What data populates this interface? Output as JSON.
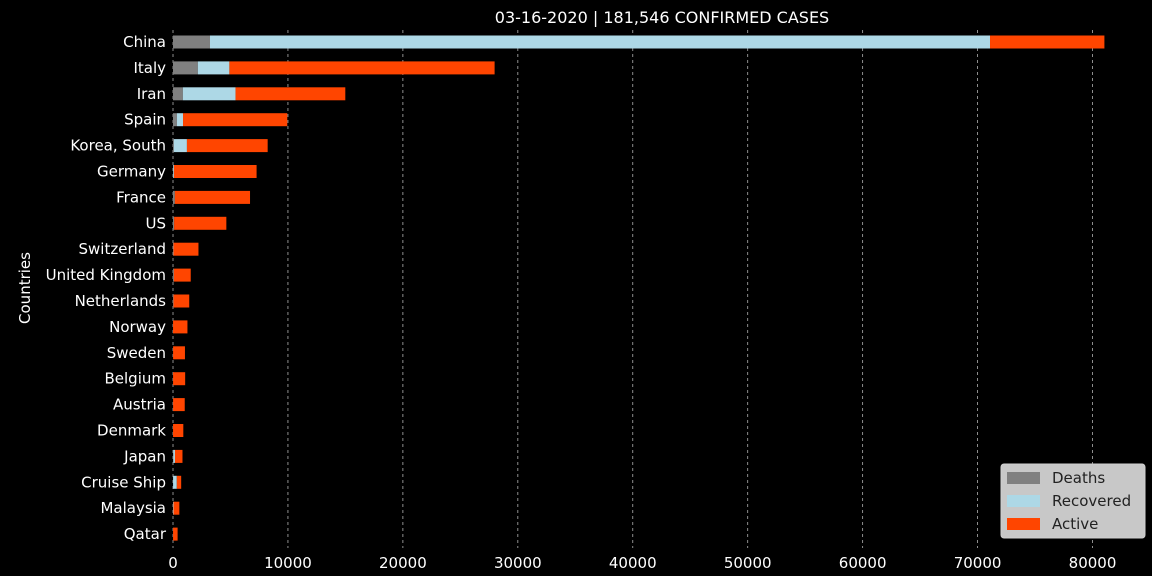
{
  "chart_data": {
    "type": "bar",
    "orientation": "horizontal",
    "stacked": true,
    "title": "03-16-2020 | 181,546 CONFIRMED CASES",
    "ylabel": "Countries",
    "xlabel": "",
    "xlim": [
      0,
      85000
    ],
    "x_ticks": [
      0,
      10000,
      20000,
      30000,
      40000,
      50000,
      60000,
      70000,
      80000
    ],
    "grid": "vertical-dashed",
    "legend_position": "bottom-right",
    "categories": [
      "China",
      "Italy",
      "Iran",
      "Spain",
      "Korea, South",
      "Germany",
      "France",
      "US",
      "Switzerland",
      "United Kingdom",
      "Netherlands",
      "Norway",
      "Sweden",
      "Belgium",
      "Austria",
      "Denmark",
      "Japan",
      "Cruise Ship",
      "Malaysia",
      "Qatar"
    ],
    "series": [
      {
        "name": "Deaths",
        "color": "#808080",
        "values": [
          3218,
          2158,
          853,
          342,
          75,
          17,
          148,
          85,
          27,
          55,
          43,
          3,
          7,
          5,
          3,
          2,
          28,
          7,
          0,
          0
        ]
      },
      {
        "name": "Recovered",
        "color": "#add8e6",
        "values": [
          67863,
          2749,
          4590,
          530,
          1137,
          67,
          12,
          12,
          15,
          20,
          2,
          1,
          1,
          1,
          6,
          1,
          144,
          325,
          42,
          4
        ]
      },
      {
        "name": "Active",
        "color": "#ff4500",
        "values": [
          9952,
          23073,
          9548,
          9070,
          7024,
          7188,
          6541,
          4544,
          2173,
          1468,
          1368,
          1253,
          1032,
          1052,
          1012,
          894,
          653,
          380,
          511,
          397
        ]
      }
    ]
  }
}
